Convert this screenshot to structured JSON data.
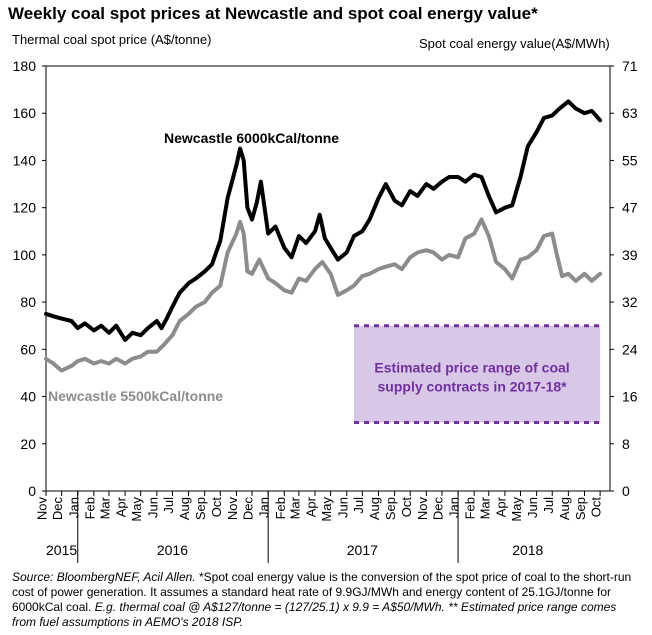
{
  "chart_data": {
    "type": "line",
    "title": "Weekly coal spot prices at Newcastle and spot coal energy value*",
    "ylabel_left": "Thermal coal spot price (A$/tonne)",
    "ylabel_right": "Spot coal energy value(A$/MWh)",
    "ylim_left": [
      0,
      180
    ],
    "ylim_right": [
      0,
      71
    ],
    "yticks_left": [
      "0",
      "20",
      "40",
      "60",
      "80",
      "100",
      "120",
      "140",
      "160",
      "180"
    ],
    "yticks_right": [
      "0",
      "8",
      "16",
      "24",
      "32",
      "39",
      "47",
      "55",
      "63",
      "71"
    ],
    "xlim": [
      "2015-11-01",
      "2018-10-20"
    ],
    "months": [
      {
        "label": "Nov",
        "date": "2015-11-01"
      },
      {
        "label": "Dec",
        "date": "2015-12-01"
      },
      {
        "label": "Jan",
        "date": "2016-01-01"
      },
      {
        "label": "Feb",
        "date": "2016-02-01"
      },
      {
        "label": "Mar",
        "date": "2016-03-01"
      },
      {
        "label": "Apr",
        "date": "2016-04-01"
      },
      {
        "label": "May",
        "date": "2016-05-01"
      },
      {
        "label": "Jun",
        "date": "2016-06-01"
      },
      {
        "label": "Jul",
        "date": "2016-07-01"
      },
      {
        "label": "Aug",
        "date": "2016-08-01"
      },
      {
        "label": "Sep",
        "date": "2016-09-01"
      },
      {
        "label": "Oct",
        "date": "2016-10-01"
      },
      {
        "label": "Nov",
        "date": "2016-11-01"
      },
      {
        "label": "Dec",
        "date": "2016-12-01"
      },
      {
        "label": "Jan",
        "date": "2017-01-01"
      },
      {
        "label": "Feb",
        "date": "2017-02-01"
      },
      {
        "label": "Mar",
        "date": "2017-03-01"
      },
      {
        "label": "Apr",
        "date": "2017-04-01"
      },
      {
        "label": "May",
        "date": "2017-05-01"
      },
      {
        "label": "Jun",
        "date": "2017-06-01"
      },
      {
        "label": "Jul",
        "date": "2017-07-01"
      },
      {
        "label": "Aug",
        "date": "2017-08-01"
      },
      {
        "label": "Sep",
        "date": "2017-09-01"
      },
      {
        "label": "Oct",
        "date": "2017-10-01"
      },
      {
        "label": "Nov",
        "date": "2017-11-01"
      },
      {
        "label": "Dec",
        "date": "2017-12-01"
      },
      {
        "label": "Jan",
        "date": "2018-01-01"
      },
      {
        "label": "Feb",
        "date": "2018-02-01"
      },
      {
        "label": "Mar",
        "date": "2018-03-01"
      },
      {
        "label": "Apr",
        "date": "2018-04-01"
      },
      {
        "label": "May",
        "date": "2018-05-01"
      },
      {
        "label": "Jun",
        "date": "2018-06-01"
      },
      {
        "label": "Jul",
        "date": "2018-07-01"
      },
      {
        "label": "Aug",
        "date": "2018-08-01"
      },
      {
        "label": "Sep",
        "date": "2018-09-01"
      },
      {
        "label": "Oct",
        "date": "2018-10-01"
      }
    ],
    "years": [
      {
        "label": "2015",
        "date": "2015-12-01"
      },
      {
        "label": "2016",
        "date": "2016-07-01"
      },
      {
        "label": "2017",
        "date": "2017-07-01"
      },
      {
        "label": "2018",
        "date": "2018-05-15"
      }
    ],
    "year_dividers": [
      "2016-01-01",
      "2017-01-01",
      "2018-01-01"
    ],
    "series": [
      {
        "name": "Newcastle 6000kCal/tonne",
        "color": "#000000",
        "points": [
          [
            "2015-11-01",
            75
          ],
          [
            "2015-11-15",
            74
          ],
          [
            "2015-12-01",
            73
          ],
          [
            "2015-12-20",
            72
          ],
          [
            "2016-01-01",
            69
          ],
          [
            "2016-01-15",
            71
          ],
          [
            "2016-02-01",
            68
          ],
          [
            "2016-02-15",
            70
          ],
          [
            "2016-03-01",
            67
          ],
          [
            "2016-03-15",
            70
          ],
          [
            "2016-04-01",
            64
          ],
          [
            "2016-04-15",
            67
          ],
          [
            "2016-05-01",
            66
          ],
          [
            "2016-05-15",
            69
          ],
          [
            "2016-06-01",
            72
          ],
          [
            "2016-06-10",
            69
          ],
          [
            "2016-06-20",
            73
          ],
          [
            "2016-07-01",
            78
          ],
          [
            "2016-07-15",
            84
          ],
          [
            "2016-08-01",
            88
          ],
          [
            "2016-08-15",
            90
          ],
          [
            "2016-09-01",
            93
          ],
          [
            "2016-09-15",
            96
          ],
          [
            "2016-10-01",
            106
          ],
          [
            "2016-10-15",
            124
          ],
          [
            "2016-11-01",
            138
          ],
          [
            "2016-11-08",
            145
          ],
          [
            "2016-11-15",
            140
          ],
          [
            "2016-11-22",
            120
          ],
          [
            "2016-12-01",
            115
          ],
          [
            "2016-12-10",
            122
          ],
          [
            "2016-12-18",
            131
          ],
          [
            "2017-01-01",
            109
          ],
          [
            "2017-01-15",
            112
          ],
          [
            "2017-02-01",
            103
          ],
          [
            "2017-02-15",
            99
          ],
          [
            "2017-03-01",
            108
          ],
          [
            "2017-03-15",
            105
          ],
          [
            "2017-04-01",
            110
          ],
          [
            "2017-04-10",
            117
          ],
          [
            "2017-04-20",
            107
          ],
          [
            "2017-05-01",
            103
          ],
          [
            "2017-05-15",
            98
          ],
          [
            "2017-06-01",
            101
          ],
          [
            "2017-06-15",
            108
          ],
          [
            "2017-07-01",
            110
          ],
          [
            "2017-07-15",
            115
          ],
          [
            "2017-08-01",
            124
          ],
          [
            "2017-08-15",
            130
          ],
          [
            "2017-09-01",
            123
          ],
          [
            "2017-09-15",
            121
          ],
          [
            "2017-10-01",
            127
          ],
          [
            "2017-10-15",
            125
          ],
          [
            "2017-11-01",
            130
          ],
          [
            "2017-11-15",
            128
          ],
          [
            "2017-12-01",
            131
          ],
          [
            "2017-12-15",
            133
          ],
          [
            "2018-01-01",
            133
          ],
          [
            "2018-01-15",
            131
          ],
          [
            "2018-02-01",
            134
          ],
          [
            "2018-02-15",
            133
          ],
          [
            "2018-03-01",
            125
          ],
          [
            "2018-03-15",
            118
          ],
          [
            "2018-04-01",
            120
          ],
          [
            "2018-04-15",
            121
          ],
          [
            "2018-05-01",
            133
          ],
          [
            "2018-05-15",
            146
          ],
          [
            "2018-06-01",
            152
          ],
          [
            "2018-06-15",
            158
          ],
          [
            "2018-07-01",
            159
          ],
          [
            "2018-07-15",
            162
          ],
          [
            "2018-08-01",
            165
          ],
          [
            "2018-08-15",
            162
          ],
          [
            "2018-09-01",
            160
          ],
          [
            "2018-09-15",
            161
          ],
          [
            "2018-10-01",
            157
          ]
        ]
      },
      {
        "name": "Newcastle 5500kCal/tonne",
        "color": "#8c8c8c",
        "points": [
          [
            "2015-11-01",
            56
          ],
          [
            "2015-11-15",
            54
          ],
          [
            "2015-12-01",
            51
          ],
          [
            "2015-12-20",
            53
          ],
          [
            "2016-01-01",
            55
          ],
          [
            "2016-01-15",
            56
          ],
          [
            "2016-02-01",
            54
          ],
          [
            "2016-02-15",
            55
          ],
          [
            "2016-03-01",
            54
          ],
          [
            "2016-03-15",
            56
          ],
          [
            "2016-04-01",
            54
          ],
          [
            "2016-04-15",
            56
          ],
          [
            "2016-05-01",
            57
          ],
          [
            "2016-05-15",
            59
          ],
          [
            "2016-06-01",
            59
          ],
          [
            "2016-06-15",
            62
          ],
          [
            "2016-07-01",
            66
          ],
          [
            "2016-07-15",
            72
          ],
          [
            "2016-08-01",
            75
          ],
          [
            "2016-08-15",
            78
          ],
          [
            "2016-09-01",
            80
          ],
          [
            "2016-09-15",
            84
          ],
          [
            "2016-10-01",
            87
          ],
          [
            "2016-10-15",
            101
          ],
          [
            "2016-11-01",
            109
          ],
          [
            "2016-11-08",
            114
          ],
          [
            "2016-11-15",
            109
          ],
          [
            "2016-11-22",
            93
          ],
          [
            "2016-12-01",
            92
          ],
          [
            "2016-12-15",
            98
          ],
          [
            "2017-01-01",
            90
          ],
          [
            "2017-01-15",
            88
          ],
          [
            "2017-02-01",
            85
          ],
          [
            "2017-02-15",
            84
          ],
          [
            "2017-03-01",
            90
          ],
          [
            "2017-03-15",
            89
          ],
          [
            "2017-04-01",
            94
          ],
          [
            "2017-04-15",
            97
          ],
          [
            "2017-05-01",
            92
          ],
          [
            "2017-05-15",
            83
          ],
          [
            "2017-06-01",
            85
          ],
          [
            "2017-06-15",
            87
          ],
          [
            "2017-07-01",
            91
          ],
          [
            "2017-07-15",
            92
          ],
          [
            "2017-08-01",
            94
          ],
          [
            "2017-08-15",
            95
          ],
          [
            "2017-09-01",
            96
          ],
          [
            "2017-09-15",
            94
          ],
          [
            "2017-10-01",
            99
          ],
          [
            "2017-10-15",
            101
          ],
          [
            "2017-11-01",
            102
          ],
          [
            "2017-11-15",
            101
          ],
          [
            "2017-12-01",
            98
          ],
          [
            "2017-12-15",
            100
          ],
          [
            "2018-01-01",
            99
          ],
          [
            "2018-01-15",
            107
          ],
          [
            "2018-02-01",
            109
          ],
          [
            "2018-02-15",
            115
          ],
          [
            "2018-03-01",
            108
          ],
          [
            "2018-03-15",
            97
          ],
          [
            "2018-04-01",
            94
          ],
          [
            "2018-04-15",
            90
          ],
          [
            "2018-05-01",
            98
          ],
          [
            "2018-05-15",
            99
          ],
          [
            "2018-06-01",
            102
          ],
          [
            "2018-06-15",
            108
          ],
          [
            "2018-07-01",
            109
          ],
          [
            "2018-07-10",
            100
          ],
          [
            "2018-07-20",
            91
          ],
          [
            "2018-08-01",
            92
          ],
          [
            "2018-08-15",
            89
          ],
          [
            "2018-09-01",
            92
          ],
          [
            "2018-09-15",
            89
          ],
          [
            "2018-10-01",
            92
          ]
        ]
      }
    ],
    "annotations": {
      "series1_label": "Newcastle 6000kCal/tonne",
      "series2_label": "Newcastle 5500kCal/tonne",
      "box_text_line1": "Estimated price range of coal",
      "box_text_line2": "supply contracts in 2017-18*",
      "box": {
        "x_start": "2017-06-15",
        "x_end": "2018-10-01",
        "y_low": 29,
        "y_high": 70
      },
      "box_fill": "#d8c7e6",
      "box_border": "#7030a0",
      "box_text_color": "#7030a0"
    },
    "grid": false
  },
  "footnote": {
    "part1": "Source: BloombergNEF, Acil Allen. ",
    "part2": "*Spot coal energy value is the conversion of the spot price of coal to the short-run cost of power generation. It assumes a standard heat rate of 9.9GJ/MWh and energy content of 25.1GJ/tonne for 6000kCal coal. ",
    "part3": "E.g. thermal coal @ A$127/tonne = (127/25.1) x 9.9 = A$50/MWh. ** Estimated price range comes from fuel assumptions in AEMO's 2018 ISP."
  }
}
